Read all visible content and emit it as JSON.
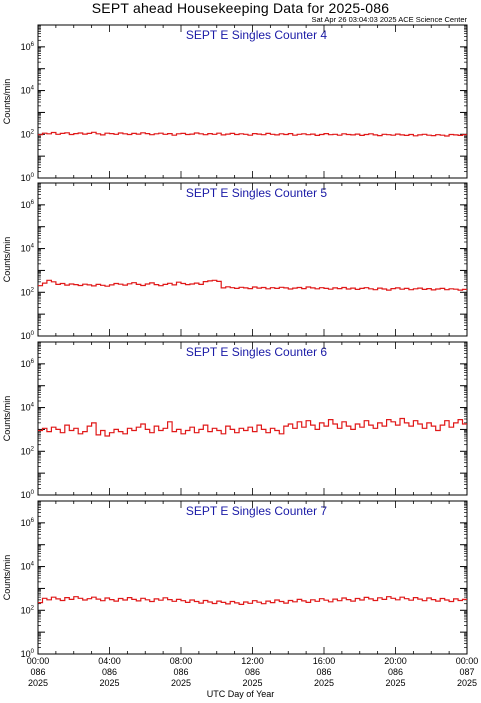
{
  "header": {
    "title": "SEPT ahead Housekeeping Data for 2025-086",
    "timestamp": "Sat Apr 26 03:04:03 2025 ACE Science Center"
  },
  "colors": {
    "series": "#e01818",
    "panel_title": "#1a1aa6"
  },
  "chart_data": [
    {
      "type": "line",
      "title": "SEPT E Singles Counter 4",
      "ylabel": "Counts/min",
      "yscale": "log",
      "ylim_exp": [
        0,
        7
      ],
      "yticks_exp": [
        0,
        2,
        4,
        6
      ],
      "xlim_hours": [
        0,
        24
      ],
      "step_hours": 0.25,
      "values_log10": [
        1.98,
        2.05,
        2.02,
        2.08,
        2.0,
        2.04,
        2.07,
        1.99,
        2.03,
        2.06,
        2.01,
        2.04,
        2.09,
        2.02,
        1.97,
        2.05,
        2.03,
        2.0,
        2.06,
        2.02,
        1.99,
        2.04,
        2.01,
        2.07,
        2.03,
        1.98,
        2.02,
        2.05,
        2.0,
        2.03,
        1.96,
        2.02,
        2.04,
        1.99,
        2.01,
        2.06,
        2.02,
        1.98,
        2.03,
        2.0,
        2.05,
        1.97,
        2.01,
        2.04,
        1.99,
        2.02,
        2.0,
        1.96,
        2.03,
        2.01,
        1.98,
        2.04,
        2.0,
        1.97,
        2.02,
        1.99,
        2.03,
        1.96,
        2.0,
        2.02,
        1.98,
        2.01,
        1.95,
        1.99,
        2.03,
        1.98,
        2.0,
        1.96,
        2.02,
        1.99,
        1.97,
        2.01,
        1.95,
        1.99,
        2.02,
        1.97,
        1.94,
        2.0,
        1.98,
        1.96,
        2.01,
        1.97,
        1.95,
        1.99,
        1.93,
        1.97,
        2.0,
        1.96,
        1.94,
        1.98,
        1.96,
        1.92,
        1.99,
        1.97,
        1.95,
        1.98
      ]
    },
    {
      "type": "line",
      "title": "SEPT E Singles Counter 5",
      "ylabel": "Counts/min",
      "yscale": "log",
      "ylim_exp": [
        0,
        7
      ],
      "yticks_exp": [
        0,
        2,
        4,
        6
      ],
      "xlim_hours": [
        0,
        24
      ],
      "step_hours": 0.25,
      "values_log10": [
        2.3,
        2.42,
        2.55,
        2.48,
        2.36,
        2.4,
        2.33,
        2.38,
        2.35,
        2.31,
        2.37,
        2.34,
        2.29,
        2.36,
        2.32,
        2.28,
        2.34,
        2.4,
        2.37,
        2.33,
        2.39,
        2.44,
        2.36,
        2.31,
        2.38,
        2.43,
        2.35,
        2.3,
        2.36,
        2.41,
        2.34,
        2.46,
        2.4,
        2.35,
        2.38,
        2.42,
        2.36,
        2.49,
        2.52,
        2.55,
        2.5,
        2.2,
        2.25,
        2.21,
        2.18,
        2.23,
        2.2,
        2.17,
        2.24,
        2.19,
        2.22,
        2.16,
        2.21,
        2.18,
        2.23,
        2.2,
        2.15,
        2.19,
        2.22,
        2.17,
        2.24,
        2.2,
        2.16,
        2.21,
        2.18,
        2.14,
        2.2,
        2.17,
        2.22,
        2.15,
        2.19,
        2.13,
        2.18,
        2.21,
        2.16,
        2.12,
        2.19,
        2.15,
        2.1,
        2.17,
        2.2,
        2.14,
        2.18,
        2.12,
        2.16,
        2.19,
        2.13,
        2.17,
        2.11,
        2.15,
        2.18,
        2.12,
        2.16,
        2.14,
        2.1,
        2.13
      ]
    },
    {
      "type": "line",
      "title": "SEPT E Singles Counter 6",
      "ylabel": "Counts/min",
      "yscale": "log",
      "ylim_exp": [
        0,
        7
      ],
      "yticks_exp": [
        0,
        2,
        4,
        6
      ],
      "xlim_hours": [
        0,
        24
      ],
      "step_hours": 0.25,
      "values_log10": [
        2.95,
        3.05,
        2.9,
        3.1,
        3.0,
        2.85,
        3.2,
        2.95,
        3.05,
        2.8,
        2.9,
        3.15,
        3.3,
        2.75,
        2.95,
        2.7,
        2.85,
        3.0,
        2.9,
        2.8,
        3.05,
        2.95,
        3.1,
        3.25,
        3.0,
        2.85,
        3.15,
        2.95,
        3.05,
        3.35,
        2.9,
        3.0,
        2.8,
        2.95,
        3.1,
        2.85,
        3.0,
        3.2,
        2.9,
        3.05,
        2.95,
        2.8,
        3.15,
        3.0,
        2.85,
        3.05,
        2.95,
        3.1,
        2.9,
        3.2,
        3.0,
        2.85,
        3.05,
        2.95,
        2.8,
        3.15,
        3.25,
        3.05,
        3.35,
        3.1,
        3.4,
        3.2,
        3.0,
        3.3,
        3.15,
        3.45,
        3.25,
        3.05,
        3.35,
        3.15,
        3.0,
        3.25,
        3.1,
        3.4,
        3.2,
        3.05,
        3.3,
        3.15,
        3.45,
        3.35,
        3.2,
        3.5,
        3.3,
        3.15,
        3.4,
        3.25,
        3.05,
        3.3,
        3.15,
        2.95,
        3.2,
        3.4,
        3.1,
        3.3,
        3.45,
        3.25
      ]
    },
    {
      "type": "line",
      "title": "SEPT E Singles Counter 7",
      "ylabel": "Counts/min",
      "yscale": "log",
      "ylim_exp": [
        0,
        7
      ],
      "yticks_exp": [
        0,
        2,
        4,
        6
      ],
      "xlim_hours": [
        0,
        24
      ],
      "step_hours": 0.25,
      "values_log10": [
        2.35,
        2.55,
        2.48,
        2.6,
        2.52,
        2.45,
        2.58,
        2.5,
        2.62,
        2.55,
        2.47,
        2.53,
        2.6,
        2.51,
        2.44,
        2.56,
        2.49,
        2.42,
        2.54,
        2.47,
        2.58,
        2.5,
        2.43,
        2.55,
        2.48,
        2.4,
        2.52,
        2.46,
        2.57,
        2.49,
        2.41,
        2.5,
        2.44,
        2.36,
        2.47,
        2.4,
        2.33,
        2.45,
        2.38,
        2.31,
        2.42,
        2.36,
        2.29,
        2.4,
        2.34,
        2.27,
        2.38,
        2.32,
        2.44,
        2.37,
        2.3,
        2.42,
        2.35,
        2.47,
        2.4,
        2.33,
        2.45,
        2.39,
        2.5,
        2.43,
        2.36,
        2.48,
        2.41,
        2.53,
        2.46,
        2.39,
        2.51,
        2.44,
        2.56,
        2.49,
        2.42,
        2.54,
        2.47,
        2.59,
        2.52,
        2.45,
        2.57,
        2.5,
        2.62,
        2.55,
        2.48,
        2.6,
        2.53,
        2.46,
        2.58,
        2.51,
        2.44,
        2.56,
        2.49,
        2.42,
        2.54,
        2.47,
        2.4,
        2.52,
        2.45,
        2.5
      ]
    }
  ],
  "xaxis": {
    "title": "UTC Day of Year",
    "ticks": [
      {
        "hour": 0,
        "time": "00:00",
        "day": "086",
        "year": "2025"
      },
      {
        "hour": 4,
        "time": "04:00",
        "day": "086",
        "year": "2025"
      },
      {
        "hour": 8,
        "time": "08:00",
        "day": "086",
        "year": "2025"
      },
      {
        "hour": 12,
        "time": "12:00",
        "day": "086",
        "year": "2025"
      },
      {
        "hour": 16,
        "time": "16:00",
        "day": "086",
        "year": "2025"
      },
      {
        "hour": 20,
        "time": "20:00",
        "day": "086",
        "year": "2025"
      },
      {
        "hour": 24,
        "time": "00:00",
        "day": "087",
        "year": "2025"
      }
    ]
  }
}
